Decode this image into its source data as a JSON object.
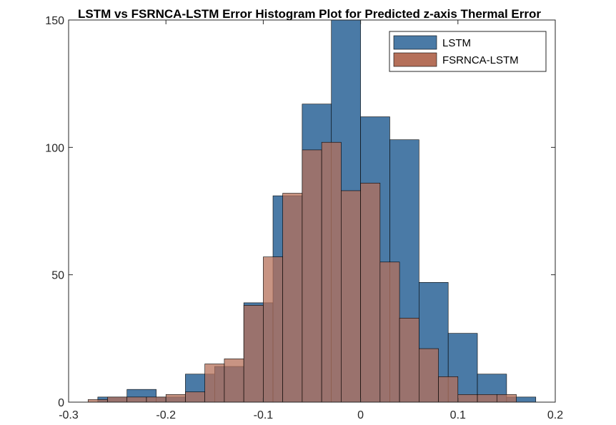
{
  "chart_data": {
    "type": "histogram",
    "title": "LSTM vs FSRNCA-LSTM Error Histogram Plot for Predicted z-axis Thermal Error",
    "xlabel": "",
    "ylabel": "",
    "xlim": [
      -0.3,
      0.2
    ],
    "ylim": [
      0,
      150
    ],
    "x_ticks": [
      -0.3,
      -0.2,
      -0.1,
      0,
      0.1,
      0.2
    ],
    "x_tick_labels": [
      "-0.3",
      "-0.2",
      "-0.1",
      "0",
      "0.1",
      "0.2"
    ],
    "y_ticks": [
      0,
      50,
      100,
      150
    ],
    "y_tick_labels": [
      "0",
      "50",
      "100",
      "150"
    ],
    "grid": false,
    "legend_position": "top-right",
    "series": [
      {
        "name": "LSTM",
        "color": "#4a7aa6",
        "bin_edges": [
          -0.27,
          -0.24,
          -0.21,
          -0.18,
          -0.15,
          -0.12,
          -0.09,
          -0.06,
          -0.03,
          0,
          0.03,
          0.06,
          0.09,
          0.12,
          0.15,
          0.18
        ],
        "counts": [
          2,
          5,
          2,
          11,
          14,
          39,
          81,
          117,
          150,
          112,
          103,
          47,
          27,
          11,
          2
        ]
      },
      {
        "name": "FSRNCA-LSTM",
        "color": "#b5705a",
        "bin_edges": [
          -0.28,
          -0.26,
          -0.24,
          -0.22,
          -0.2,
          -0.18,
          -0.16,
          -0.14,
          -0.12,
          -0.1,
          -0.08,
          -0.06,
          -0.04,
          -0.02,
          0,
          0.02,
          0.04,
          0.06,
          0.08,
          0.1,
          0.12,
          0.14,
          0.16
        ],
        "counts": [
          1,
          2,
          2,
          2,
          3,
          4,
          15,
          17,
          38,
          57,
          82,
          99,
          102,
          83,
          86,
          55,
          33,
          21,
          10,
          3,
          3,
          3
        ]
      }
    ]
  }
}
